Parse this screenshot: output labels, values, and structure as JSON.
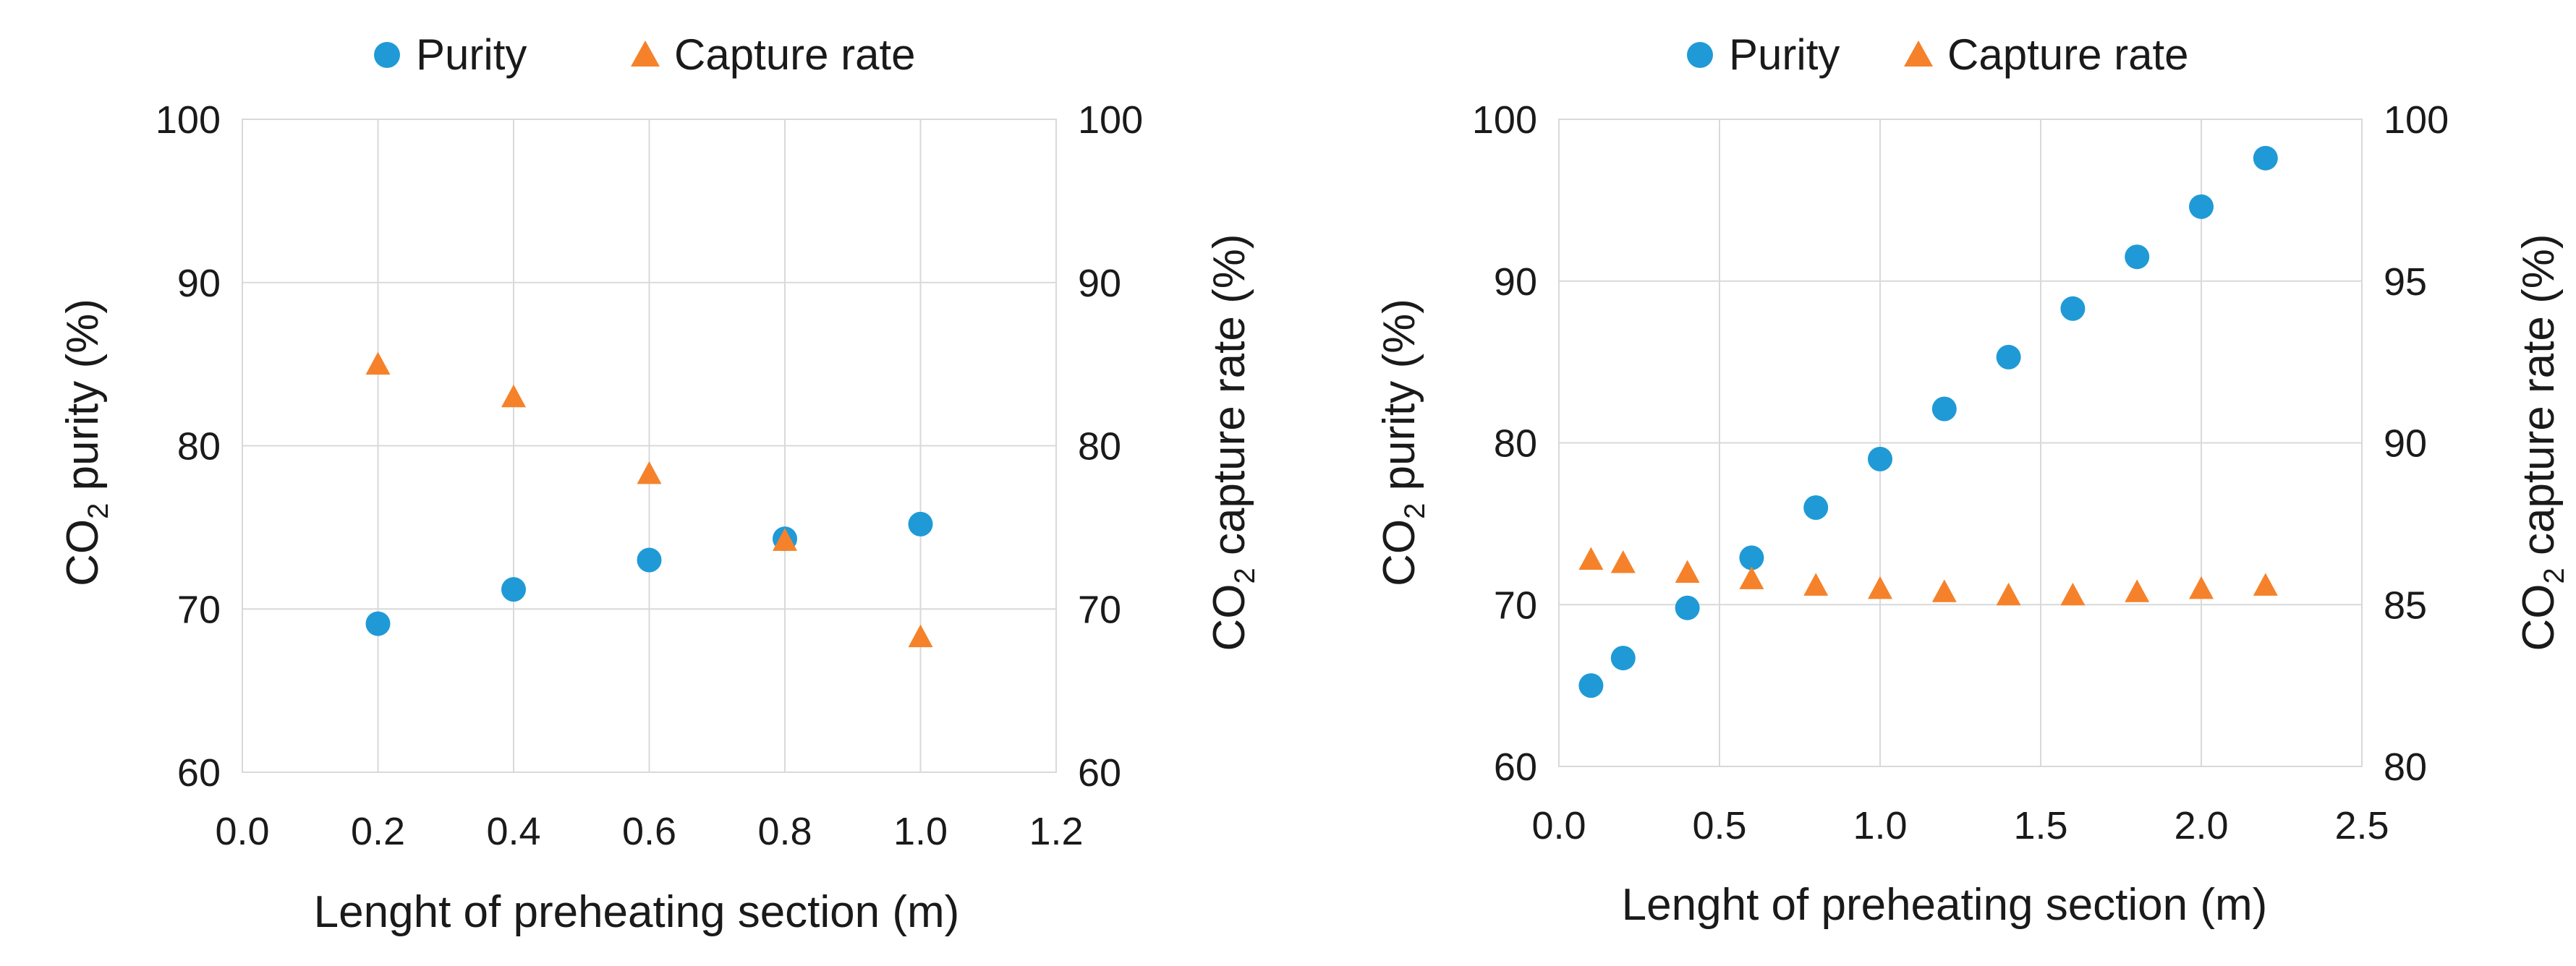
{
  "legend": {
    "purity": "Purity",
    "capture": "Capture rate"
  },
  "colors": {
    "purity": "#1f9ad6",
    "capture": "#f5822a"
  },
  "chart_data": [
    {
      "type": "scatter",
      "xlabel": "Lenght of preheating section (m)",
      "ylabel_left": "CO2 purity (%)",
      "ylabel_right": "CO2 capture rate (%)",
      "xlim": [
        0.0,
        1.2
      ],
      "ylim_left": [
        60,
        100
      ],
      "ylim_right": [
        60,
        100
      ],
      "x_ticks": [
        "0.0",
        "0.2",
        "0.4",
        "0.6",
        "0.8",
        "1.0",
        "1.2"
      ],
      "y_ticks_left": [
        "60",
        "70",
        "80",
        "90",
        "100"
      ],
      "y_ticks_right": [
        "60",
        "70",
        "80",
        "90",
        "100"
      ],
      "series": [
        {
          "name": "Purity",
          "axis": "left",
          "x": [
            0.2,
            0.4,
            0.6,
            0.8,
            1.0
          ],
          "y": [
            69.1,
            71.2,
            73.0,
            74.3,
            75.2
          ]
        },
        {
          "name": "Capture rate",
          "axis": "right",
          "x": [
            0.2,
            0.4,
            0.6,
            0.8,
            1.0
          ],
          "y": [
            85.0,
            83.0,
            78.3,
            74.2,
            68.3
          ]
        }
      ]
    },
    {
      "type": "scatter",
      "xlabel": "Lenght of preheating section (m)",
      "ylabel_left": "CO2 purity (%)",
      "ylabel_right": "CO2 capture rate (%)",
      "xlim": [
        0.0,
        2.5
      ],
      "ylim_left": [
        60,
        100
      ],
      "ylim_right": [
        80,
        100
      ],
      "x_ticks": [
        "0.0",
        "0.5",
        "1.0",
        "1.5",
        "2.0",
        "2.5"
      ],
      "y_ticks_left": [
        "60",
        "70",
        "80",
        "90",
        "100"
      ],
      "y_ticks_right": [
        "80",
        "85",
        "90",
        "95",
        "100"
      ],
      "series": [
        {
          "name": "Purity",
          "axis": "left",
          "x": [
            0.1,
            0.2,
            0.4,
            0.6,
            0.8,
            1.0,
            1.2,
            1.4,
            1.6,
            1.8,
            2.0,
            2.2
          ],
          "y": [
            65.0,
            66.7,
            69.8,
            72.9,
            76.0,
            79.0,
            82.1,
            85.3,
            88.3,
            91.5,
            94.6,
            97.6
          ]
        },
        {
          "name": "Capture rate",
          "axis": "right",
          "x": [
            0.1,
            0.2,
            0.4,
            0.6,
            0.8,
            1.0,
            1.2,
            1.4,
            1.6,
            1.8,
            2.0,
            2.2
          ],
          "y": [
            86.4,
            86.3,
            86.0,
            85.8,
            85.6,
            85.5,
            85.4,
            85.3,
            85.3,
            85.4,
            85.5,
            85.6
          ]
        }
      ]
    }
  ]
}
